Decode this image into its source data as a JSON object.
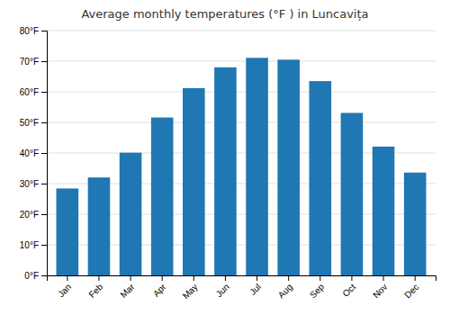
{
  "chart_data": {
    "type": "bar",
    "title": "Average monthly temperatures (°F ) in Luncavița",
    "categories": [
      "Jan",
      "Feb",
      "Mar",
      "Apr",
      "May",
      "Jun",
      "Jul",
      "Aug",
      "Sep",
      "Oct",
      "Nov",
      "Dec"
    ],
    "values": [
      28.4,
      32.0,
      40.1,
      51.6,
      61.2,
      68.0,
      71.1,
      70.5,
      63.5,
      53.1,
      42.1,
      33.6
    ],
    "ylim": [
      0,
      80
    ],
    "yticks": [
      {
        "value": 0,
        "label": "0°F"
      },
      {
        "value": 10,
        "label": "10°F"
      },
      {
        "value": 20,
        "label": "20°F"
      },
      {
        "value": 30,
        "label": "30°F"
      },
      {
        "value": 40,
        "label": "40°F"
      },
      {
        "value": 50,
        "label": "50°F"
      },
      {
        "value": 60,
        "label": "60°F"
      },
      {
        "value": 70,
        "label": "70°F"
      },
      {
        "value": 80,
        "label": "80°F"
      }
    ],
    "grid": true
  }
}
